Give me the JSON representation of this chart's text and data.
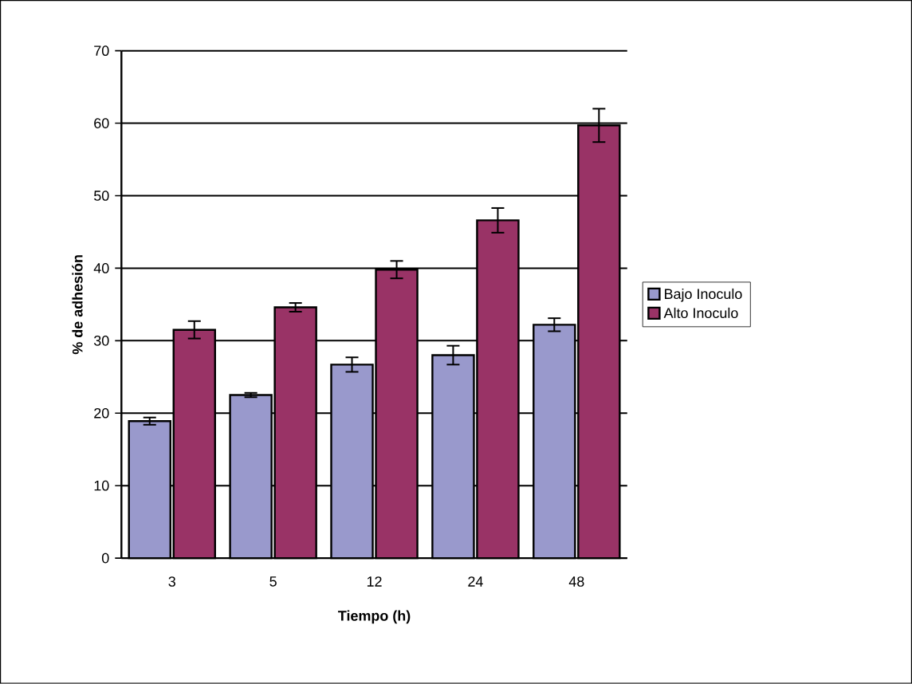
{
  "chart_data": {
    "type": "bar",
    "xlabel": "Tiempo  (h)",
    "ylabel": "% de adhesión",
    "categories": [
      "3",
      "5",
      "12",
      "24",
      "48"
    ],
    "series": [
      {
        "name": "Bajo Inoculo",
        "color": "#9999cc",
        "values": [
          18.9,
          22.5,
          26.7,
          28.0,
          32.2
        ],
        "errors": [
          0.5,
          0.3,
          1.0,
          1.3,
          0.9
        ]
      },
      {
        "name": "Alto Inoculo",
        "color": "#993366",
        "values": [
          31.5,
          34.6,
          39.8,
          46.6,
          59.7
        ],
        "errors": [
          1.2,
          0.6,
          1.2,
          1.7,
          2.3
        ]
      }
    ],
    "ylim": [
      0,
      70
    ],
    "yticks": [
      0,
      10,
      20,
      30,
      40,
      50,
      60,
      70
    ],
    "grid": "y",
    "legend": "right"
  }
}
